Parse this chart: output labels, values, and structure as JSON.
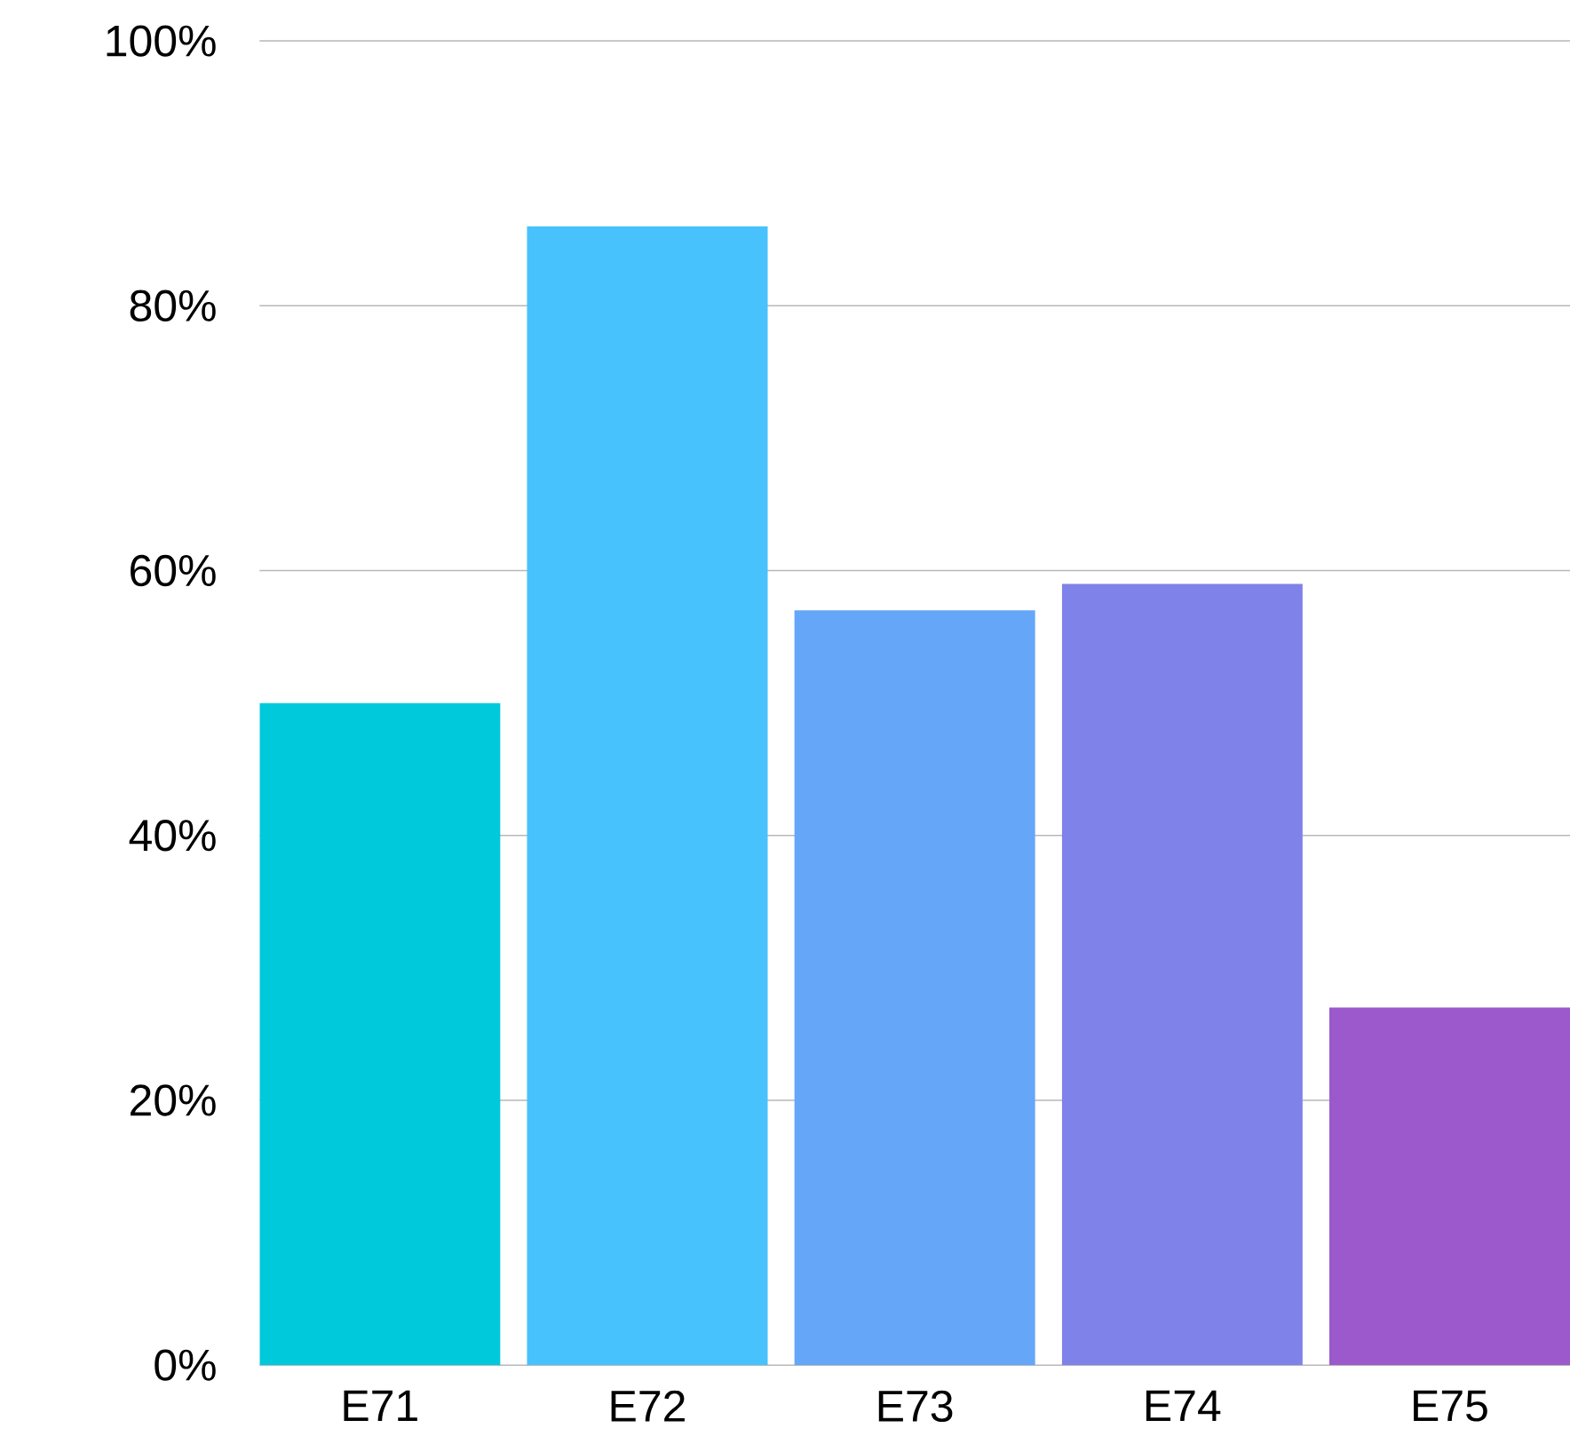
{
  "chart_data": {
    "type": "bar",
    "categories": [
      "E71",
      "E72",
      "E73",
      "E74",
      "E75"
    ],
    "values": [
      50,
      86,
      57,
      59,
      27
    ],
    "colors": [
      "#00c9db",
      "#48c2fc",
      "#65a6f9",
      "#7f82e8",
      "#9b59cc"
    ],
    "ylim": [
      0,
      100
    ],
    "yticks": [
      {
        "value": 0,
        "label": "0%"
      },
      {
        "value": 20,
        "label": "20%"
      },
      {
        "value": 40,
        "label": "40%"
      },
      {
        "value": 60,
        "label": "60%"
      },
      {
        "value": 80,
        "label": "80%"
      },
      {
        "value": 100,
        "label": "100%"
      }
    ],
    "grid": "y"
  }
}
